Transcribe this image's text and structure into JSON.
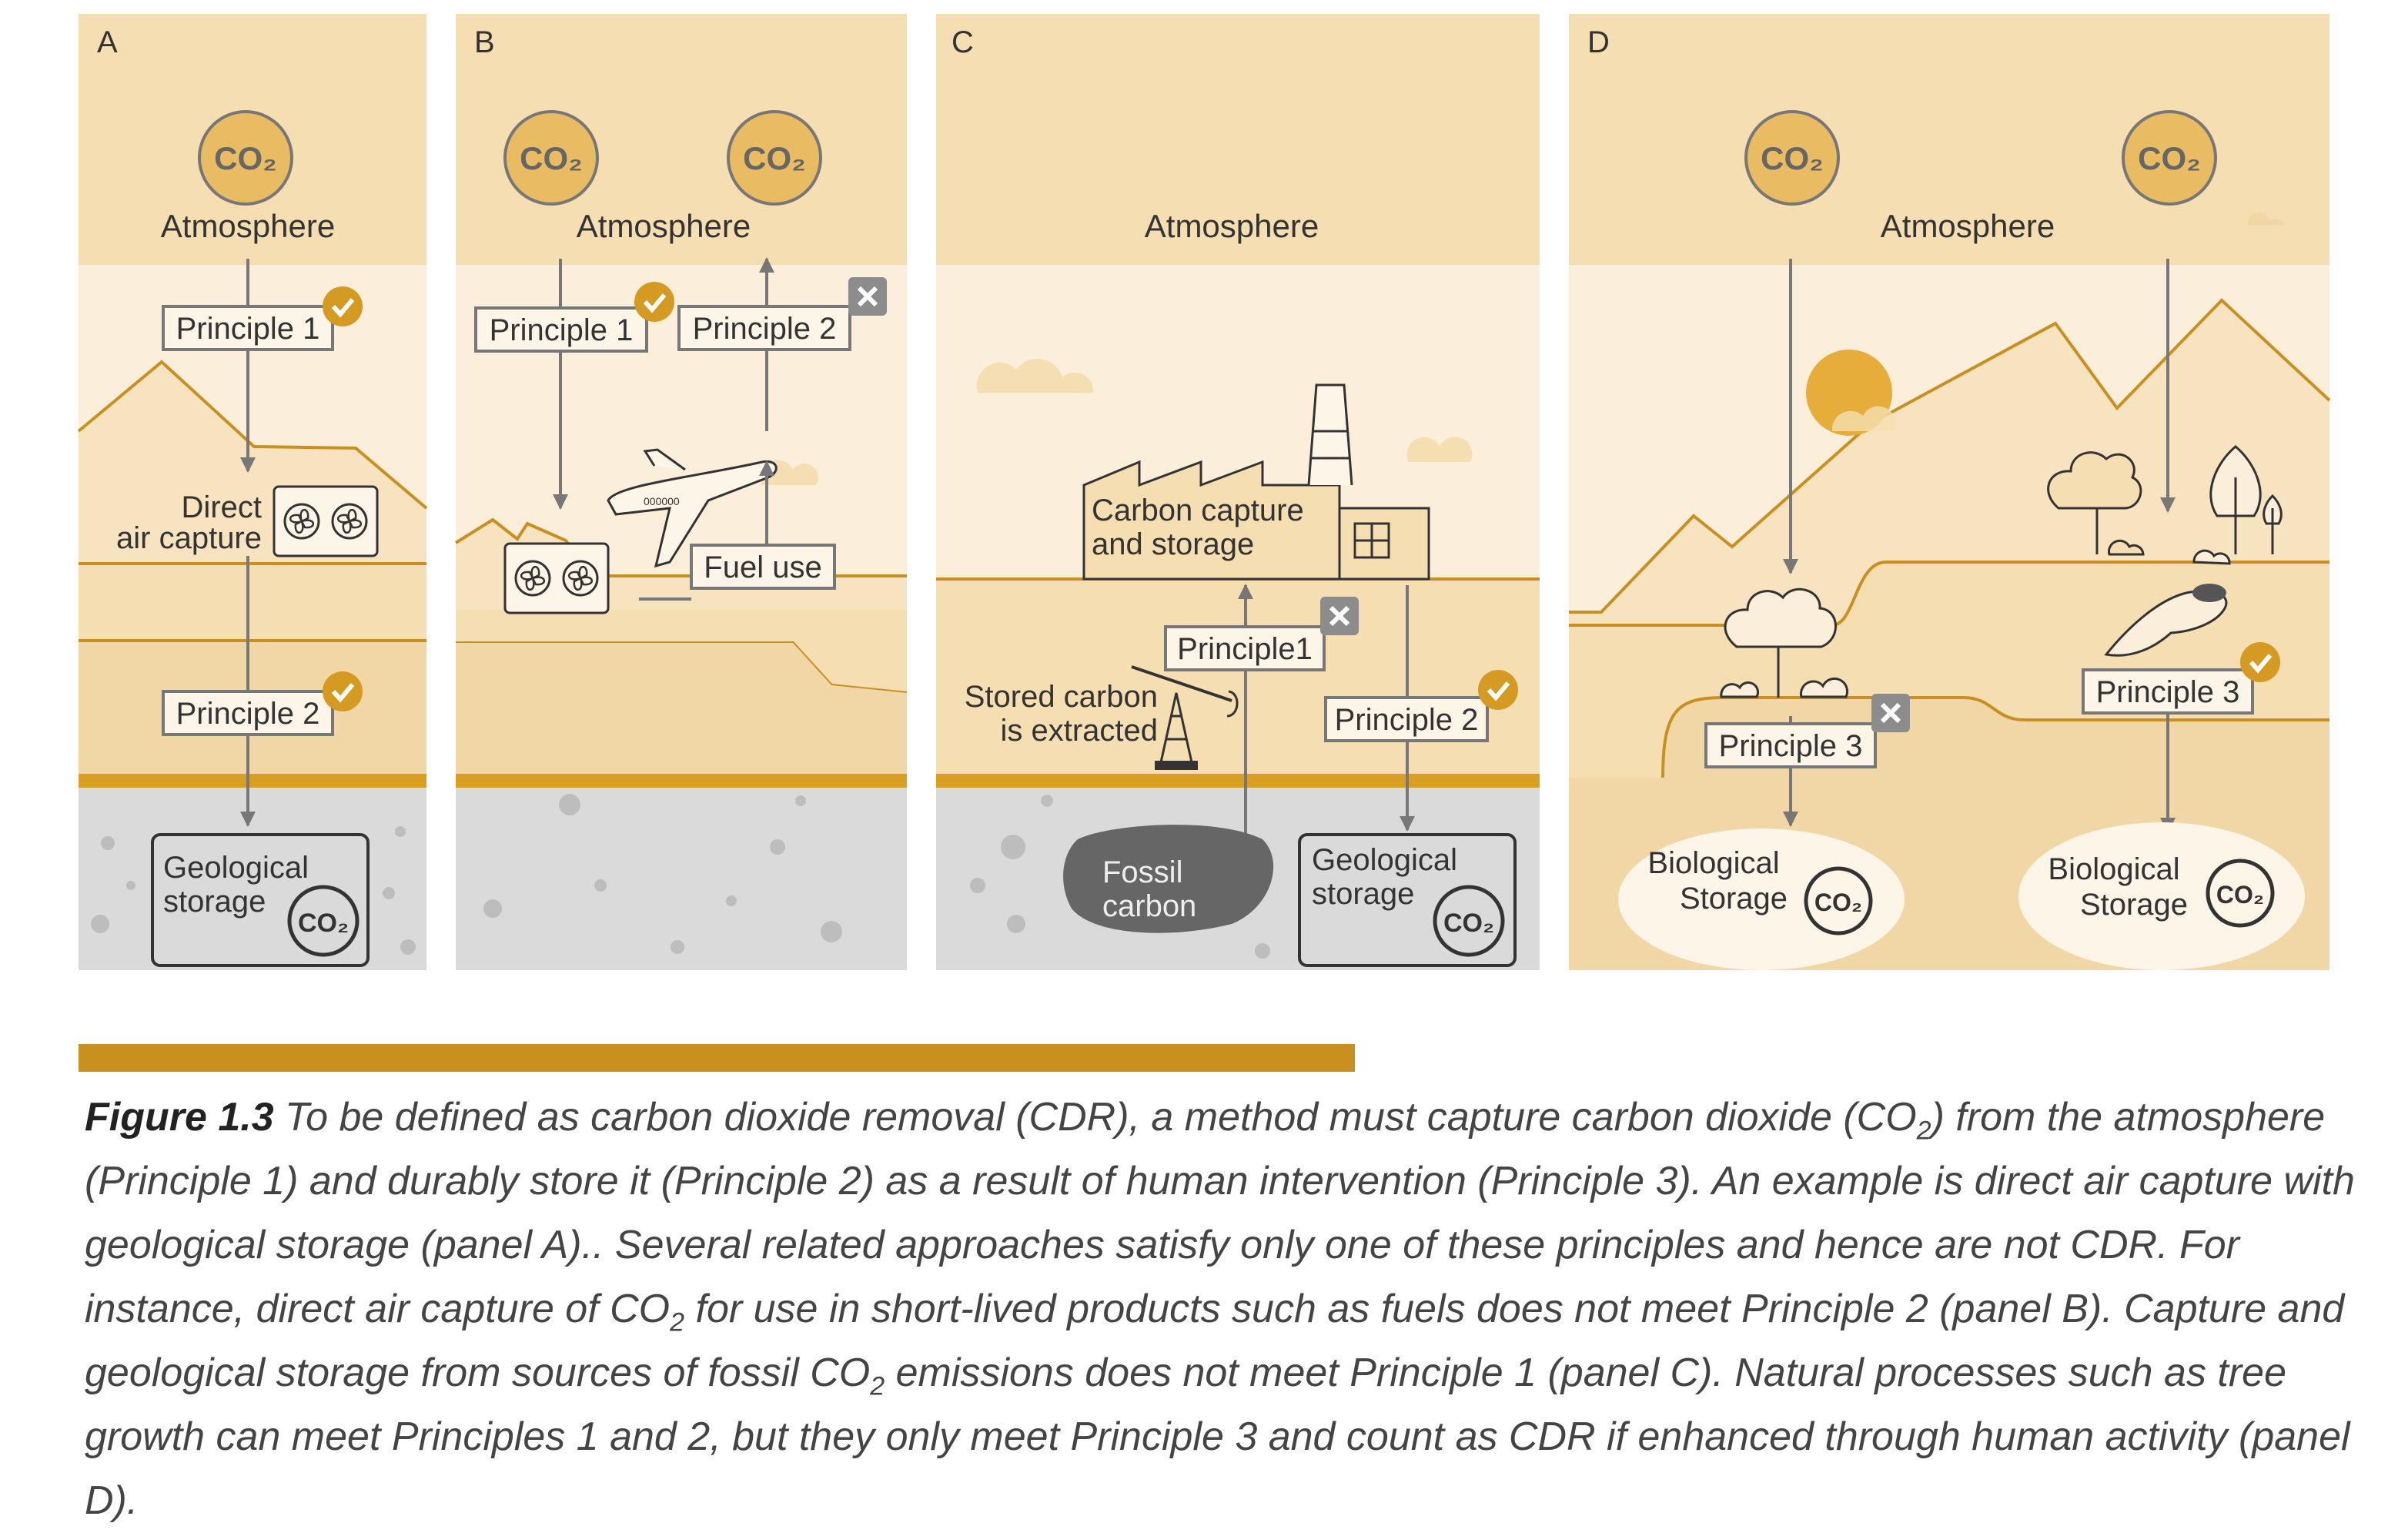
{
  "figure": {
    "panels": [
      {
        "id": "A",
        "letter": "A",
        "atmosphere": "Atmosphere",
        "co2": "CO₂",
        "principle1": "Principle 1",
        "principle2": "Principle 2",
        "dac_line1": "Direct",
        "dac_line2": "air capture",
        "storage_line1": "Geological",
        "storage_line2": "storage"
      },
      {
        "id": "B",
        "letter": "B",
        "atmosphere": "Atmosphere",
        "co2": "CO₂",
        "principle1": "Principle 1",
        "principle2": "Principle 2",
        "fuel_use": "Fuel use"
      },
      {
        "id": "C",
        "letter": "C",
        "atmosphere": "Atmosphere",
        "ccs_line1": "Carbon capture",
        "ccs_line2": "and storage",
        "principle1": "Principle1",
        "principle2": "Principle 2",
        "extracted_line1": "Stored carbon",
        "extracted_line2": "is extracted",
        "fossil_line1": "Fossil",
        "fossil_line2": "carbon",
        "storage_line1": "Geological",
        "storage_line2": "storage",
        "co2": "CO₂"
      },
      {
        "id": "D",
        "letter": "D",
        "atmosphere": "Atmosphere",
        "co2": "CO₂",
        "principle3": "Principle 3",
        "bio_line1": "Biological",
        "bio_line2": "Storage"
      }
    ],
    "check_color": "#d59a22",
    "cross_color": "#8c8c8c",
    "accent_color": "#c99020"
  },
  "caption": {
    "label": "Figure 1.3",
    "seg1": " To be defined as carbon dioxide removal (CDR), a method must capture carbon dioxide (CO",
    "sub1": "2",
    "seg2": ") from the atmosphere (Principle 1) and durably store it (Principle 2) as a result of human intervention (Principle 3). An example is direct air capture with geological storage (panel A).. Several related approaches satisfy only one of these principles and hence are not CDR. For instance, direct air capture of CO",
    "sub2": "2",
    "seg3": " for use in short-lived products such as fuels does not meet Principle 2 (panel B). Capture and geological storage from sources of fossil CO",
    "sub3": "2",
    "seg4": " emissions does not meet Principle 1 (panel C). Natural processes such as tree growth can meet Principles 1 and 2, but they only meet Principle 3 and count as CDR if enhanced through human activity (panel D)."
  }
}
